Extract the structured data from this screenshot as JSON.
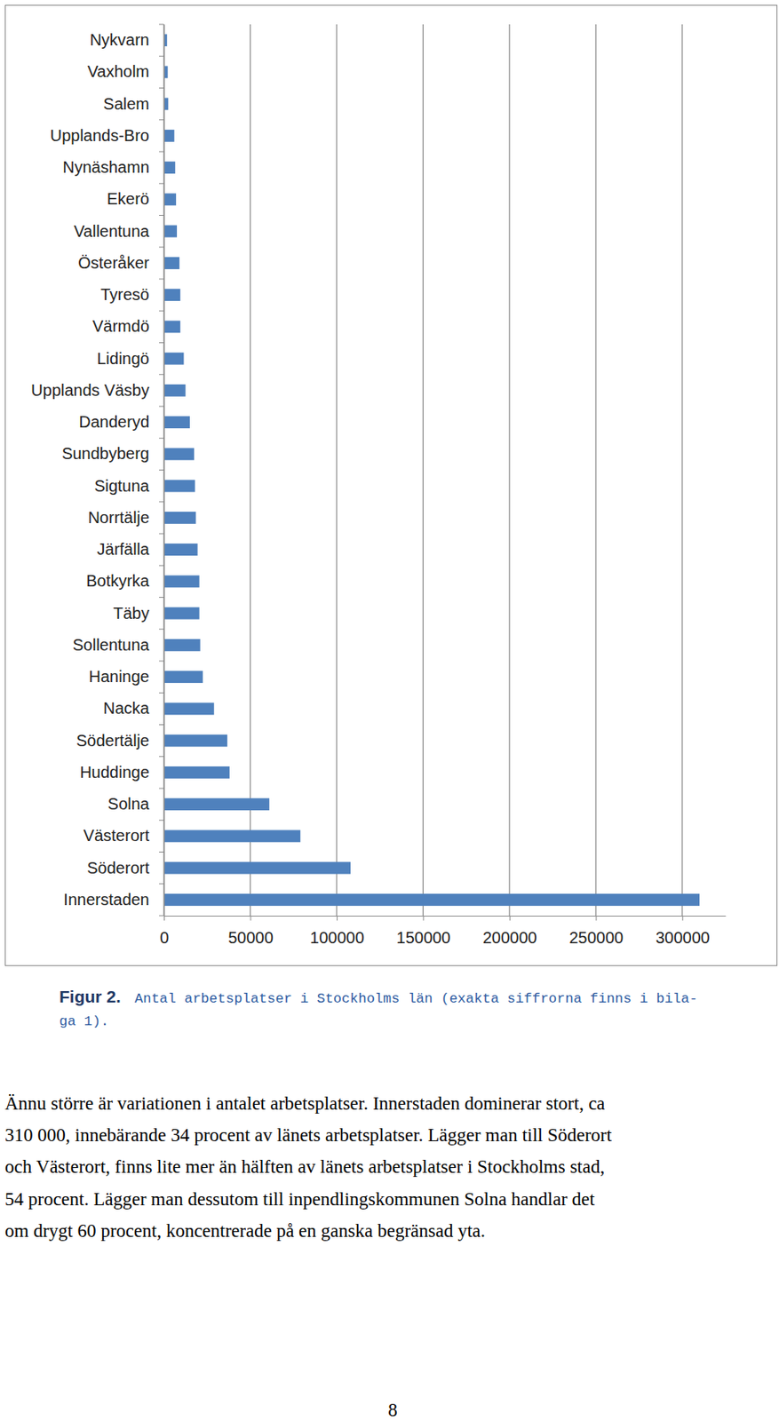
{
  "chart_data": {
    "type": "bar",
    "orientation": "horizontal",
    "categories": [
      "Nykvarn",
      "Vaxholm",
      "Salem",
      "Upplands-Bro",
      "Nynäshamn",
      "Ekerö",
      "Vallentuna",
      "Österåker",
      "Tyresö",
      "Värmdö",
      "Lidingö",
      "Upplands Väsby",
      "Danderyd",
      "Sundbyberg",
      "Sigtuna",
      "Norrtälje",
      "Järfälla",
      "Botkyrka",
      "Täby",
      "Sollentuna",
      "Haninge",
      "Nacka",
      "Södertälje",
      "Huddinge",
      "Solna",
      "Västerort",
      "Söderort",
      "Innerstaden"
    ],
    "values": [
      1800,
      2200,
      2500,
      6000,
      6500,
      7000,
      7500,
      9000,
      9500,
      9500,
      11500,
      12500,
      15000,
      17500,
      18000,
      18500,
      19500,
      20500,
      20500,
      21000,
      22500,
      29000,
      36700,
      38000,
      61000,
      79000,
      108000,
      310000
    ],
    "color": "#4f81bd",
    "xlim": [
      0,
      325000
    ],
    "xticks": [
      0,
      50000,
      100000,
      150000,
      200000,
      250000,
      300000
    ],
    "grid": true
  },
  "document": {
    "caption_label": "Figur 2.",
    "caption_lines": [
      "Antal arbetsplatser i Stockholms län (exakta siffrorna finns i bila-",
      "ga 1)."
    ],
    "paragraph_lines": [
      "Ännu större är variationen i antalet arbetsplatser. Innerstaden dominerar stort, ca",
      "310 000, innebärande 34 procent av länets arbetsplatser. Lägger man till Söderort",
      "och Västerort, finns lite mer än hälften av länets arbetsplatser i Stockholms stad,",
      "54 procent. Lägger man dessutom till inpendlingskommunen Solna handlar det",
      "om drygt 60 procent, koncentrerade på en ganska begränsad yta."
    ],
    "page_number": 8
  }
}
